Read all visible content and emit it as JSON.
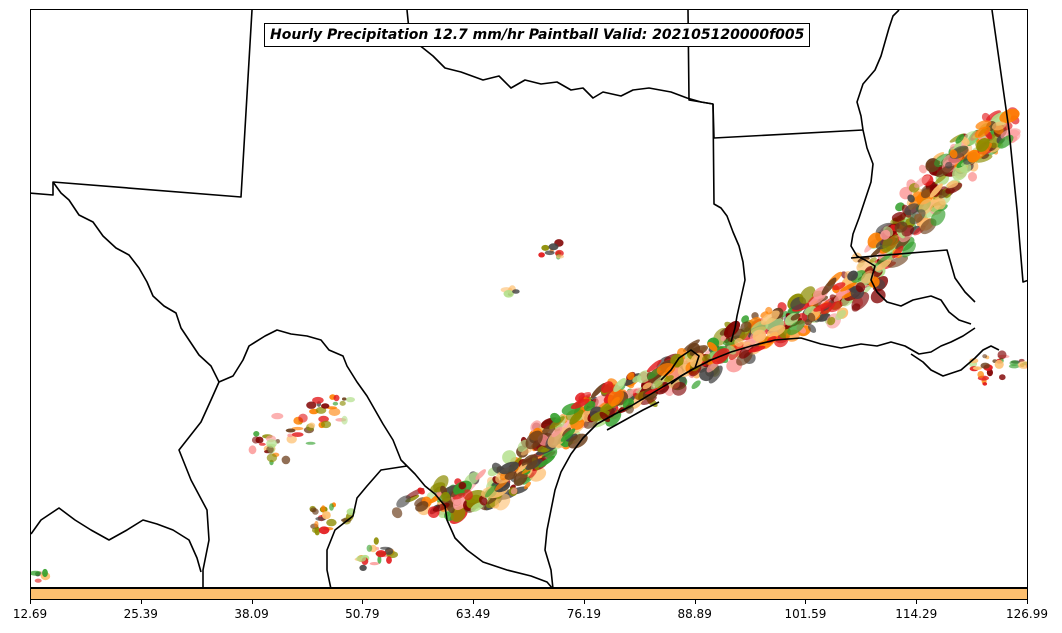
{
  "title": "Hourly Precipitation 12.7 mm/hr Paintball Valid: 202105120000f005",
  "colorbar": {
    "fill_color": "#fdbf6f",
    "tick_labels": [
      "12.69",
      "25.39",
      "38.09",
      "50.79",
      "63.49",
      "76.19",
      "88.89",
      "101.59",
      "114.29",
      "126.99"
    ]
  },
  "map_style": {
    "background": "#ffffff",
    "border_color": "#000000",
    "paintball_colors": [
      "#ff7f00",
      "#fdbf6f",
      "#e31a1c",
      "#fb9a99",
      "#33a02c",
      "#b2df8a",
      "#6a3d1a",
      "#8c8c00",
      "#7f0000",
      "#444444"
    ]
  }
}
